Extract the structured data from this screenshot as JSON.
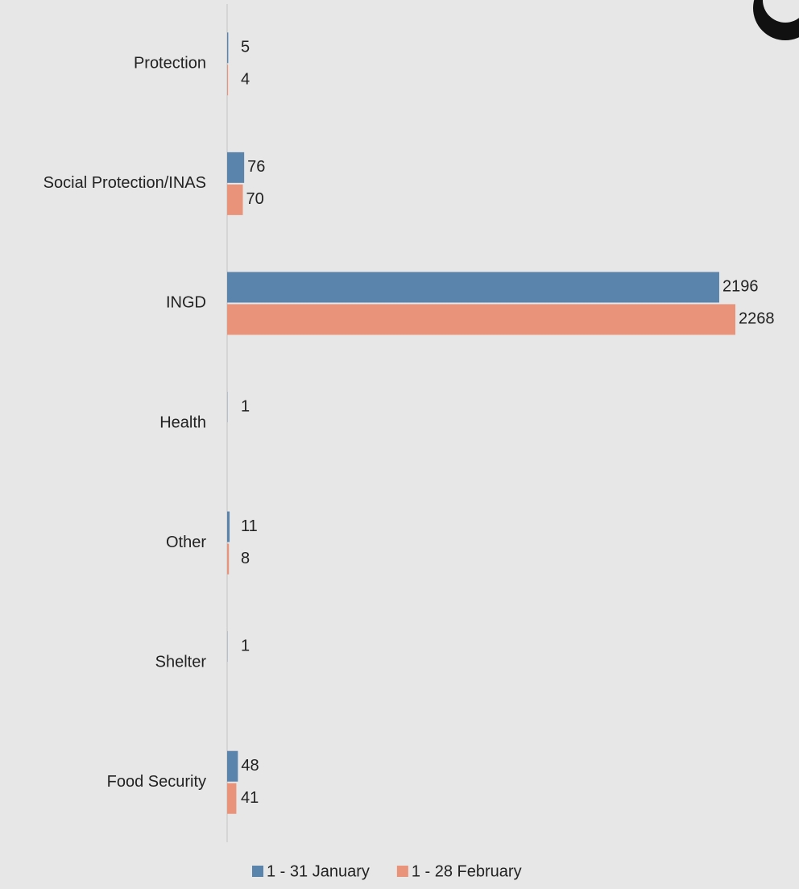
{
  "chart_data": {
    "type": "hbar",
    "categories": [
      "Protection",
      "Social Protection/INAS",
      "INGD",
      "Health",
      "Other",
      "Shelter",
      "Food Security"
    ],
    "series": [
      {
        "name": "1 - 31 January",
        "color": "#5b84ad",
        "values": [
          5,
          76,
          2196,
          1,
          11,
          1,
          48
        ]
      },
      {
        "name": "1 - 28 February",
        "color": "#e8937a",
        "values": [
          4,
          70,
          2268,
          null,
          8,
          null,
          41
        ]
      }
    ],
    "xlim": [
      0,
      2268
    ]
  }
}
